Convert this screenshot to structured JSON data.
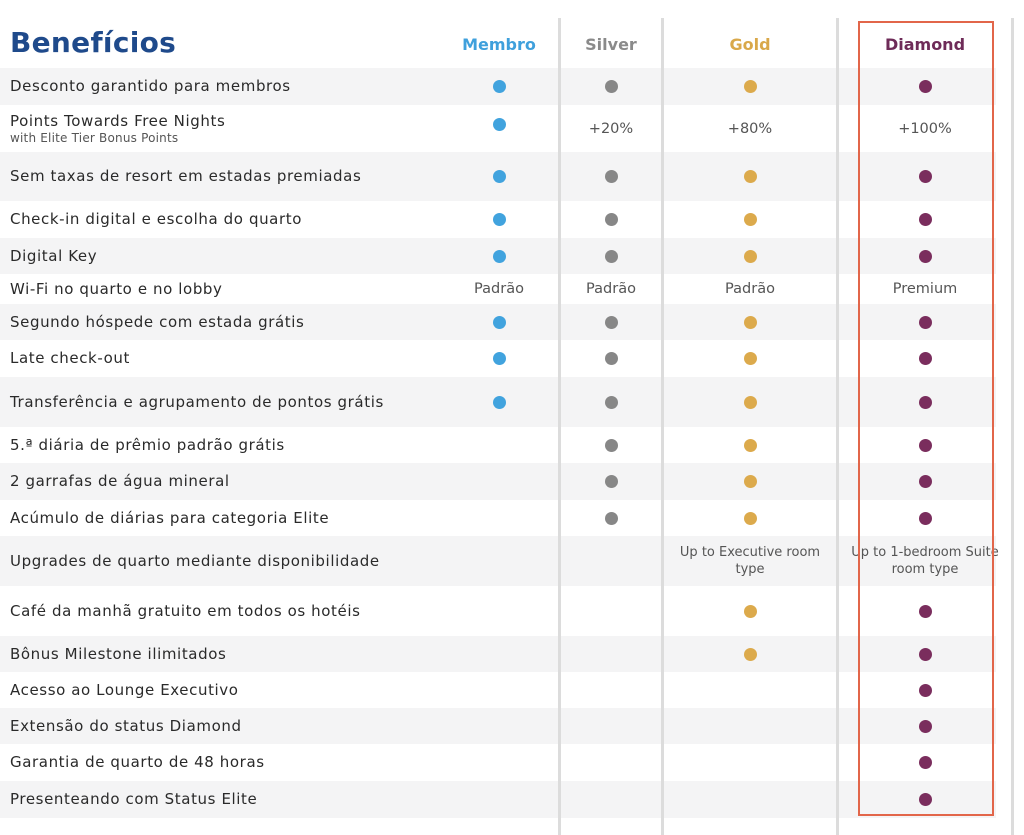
{
  "title": "Benefícios",
  "tiers": [
    {
      "name": "Membro",
      "color": "#3fa0dc"
    },
    {
      "name": "Silver",
      "color": "#8a8a8a"
    },
    {
      "name": "Gold",
      "color": "#d9a84a"
    },
    {
      "name": "Diamond",
      "color": "#6e2b58"
    }
  ],
  "dot_colors": {
    "membro": "#41a3de",
    "silver": "#878787",
    "gold": "#dcaa4c",
    "diamond": "#7a2d5d"
  },
  "rows": [
    {
      "label": "Desconto garantido para membros",
      "cells": [
        "dot",
        "dot",
        "dot",
        "dot"
      ]
    },
    {
      "label": "Points Towards Free Nights",
      "sub": "with Elite Tier Bonus Points",
      "cells": [
        "dot",
        "+20%",
        "+80%",
        "+100%"
      ]
    },
    {
      "label": "Sem taxas de resort em estadas premiadas",
      "cells": [
        "dot",
        "dot",
        "dot",
        "dot"
      ]
    },
    {
      "label": "Check-in digital e escolha do quarto",
      "cells": [
        "dot",
        "dot",
        "dot",
        "dot"
      ]
    },
    {
      "label": "Digital Key",
      "cells": [
        "dot",
        "dot",
        "dot",
        "dot"
      ]
    },
    {
      "label": "Wi-Fi no quarto e no lobby",
      "cells": [
        "Padrão",
        "Padrão",
        "Padrão",
        "Premium"
      ]
    },
    {
      "label": "Segundo hóspede com estada grátis",
      "cells": [
        "dot",
        "dot",
        "dot",
        "dot"
      ]
    },
    {
      "label": "Late check-out",
      "cells": [
        "dot",
        "dot",
        "dot",
        "dot"
      ]
    },
    {
      "label": "Transferência e agrupamento de pontos grátis",
      "cells": [
        "dot",
        "dot",
        "dot",
        "dot"
      ]
    },
    {
      "label": "5.ª diária de prêmio padrão grátis",
      "cells": [
        "",
        "dot",
        "dot",
        "dot"
      ]
    },
    {
      "label": "2 garrafas de água mineral",
      "cells": [
        "",
        "dot",
        "dot",
        "dot"
      ]
    },
    {
      "label": "Acúmulo de diárias para categoria Elite",
      "cells": [
        "",
        "dot",
        "dot",
        "dot"
      ]
    },
    {
      "label": "Upgrades de quarto mediante disponibilidade",
      "cells": [
        "",
        "",
        "Up to Executive room type",
        "Up to 1-bedroom Suite room type"
      ]
    },
    {
      "label": "Café da manhã gratuito em todos os hotéis",
      "cells": [
        "",
        "",
        "dot",
        "dot"
      ]
    },
    {
      "label": "Bônus Milestone ilimitados",
      "cells": [
        "",
        "",
        "dot",
        "dot"
      ]
    },
    {
      "label": "Acesso ao Lounge Executivo",
      "cells": [
        "",
        "",
        "",
        "dot"
      ]
    },
    {
      "label": "Extensão do status Diamond",
      "cells": [
        "",
        "",
        "",
        "dot"
      ]
    },
    {
      "label": "Garantia de quarto de 48 horas",
      "cells": [
        "",
        "",
        "",
        "dot"
      ]
    },
    {
      "label": "Presenteando com Status Elite",
      "cells": [
        "",
        "",
        "",
        "dot"
      ]
    }
  ]
}
